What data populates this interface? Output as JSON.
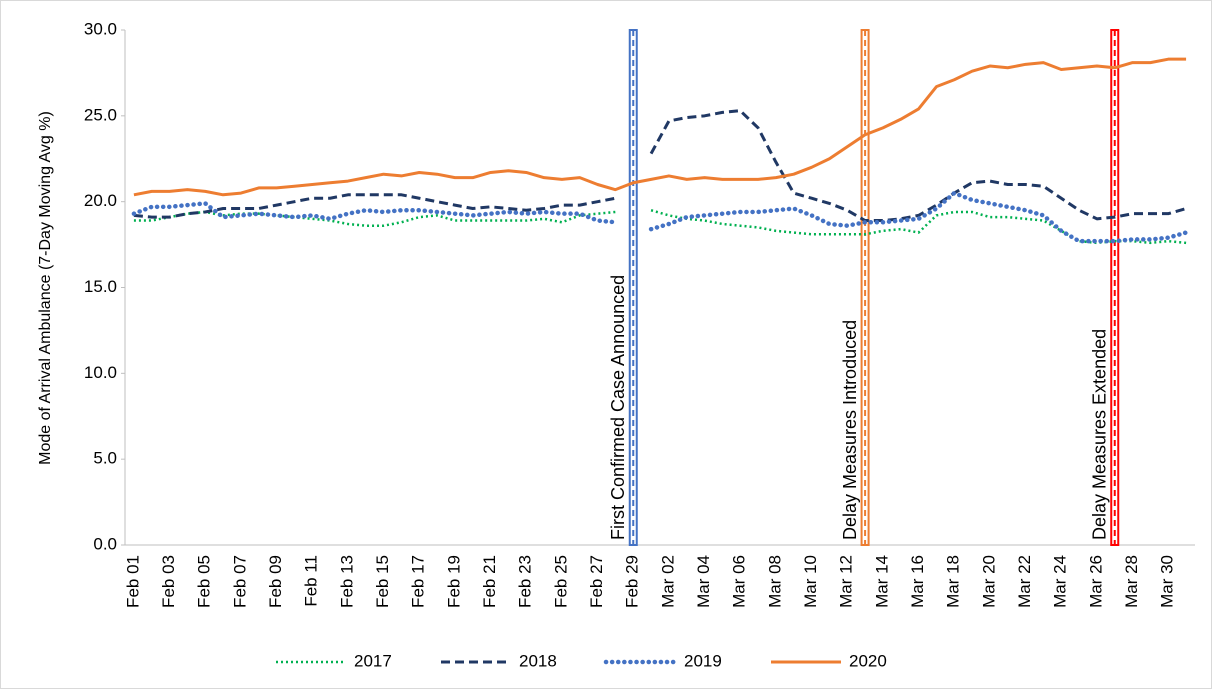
{
  "chart_data": {
    "type": "line",
    "y_label": "Mode of Arrival Ambulance (7-Day Moving Avg %)",
    "categories": [
      "Feb 01",
      null,
      "Feb 03",
      null,
      "Feb 05",
      null,
      "Feb 07",
      null,
      "Feb 09",
      null,
      "Feb 11",
      null,
      "Feb 13",
      null,
      "Feb 15",
      null,
      "Feb 17",
      null,
      "Feb 19",
      null,
      "Feb 21",
      null,
      "Feb 23",
      null,
      "Feb 25",
      null,
      "Feb 27",
      null,
      "Feb 29",
      null,
      "Mar 02",
      null,
      "Mar 04",
      null,
      "Mar 06",
      null,
      "Mar 08",
      null,
      "Mar 10",
      null,
      "Mar 12",
      null,
      "Mar 14",
      null,
      "Mar 16",
      null,
      "Mar 18",
      null,
      "Mar 20",
      null,
      "Mar 22",
      null,
      "Mar 24",
      null,
      "Mar 26",
      null,
      "Mar 28",
      null,
      "Mar 30",
      null
    ],
    "ylim": [
      0,
      30
    ],
    "yticks": [
      {
        "value": 0,
        "label": "0.0"
      },
      {
        "value": 5,
        "label": "5.0"
      },
      {
        "value": 10,
        "label": "10.0"
      },
      {
        "value": 15,
        "label": "15.0"
      },
      {
        "value": 20,
        "label": "20.0"
      },
      {
        "value": 25,
        "label": "25.0"
      },
      {
        "value": 30,
        "label": "30.0"
      }
    ],
    "grid": false,
    "legend": "bottom",
    "series": [
      {
        "name": "2017",
        "color": "#00b050",
        "line_style": "dotted",
        "values": [
          18.9,
          18.9,
          19.1,
          19.3,
          19.4,
          19.2,
          19.3,
          19.3,
          19.2,
          19.1,
          19.0,
          18.9,
          18.7,
          18.6,
          18.6,
          18.8,
          19.1,
          19.2,
          18.9,
          18.9,
          18.9,
          18.9,
          18.9,
          19.0,
          18.8,
          19.2,
          19.3,
          19.4,
          null,
          19.5,
          19.2,
          19.0,
          18.9,
          18.7,
          18.6,
          18.5,
          18.3,
          18.2,
          18.1,
          18.1,
          18.1,
          18.1,
          18.3,
          18.4,
          18.2,
          19.2,
          19.4,
          19.4,
          19.1,
          19.1,
          19.0,
          18.9,
          18.3,
          17.7,
          17.6,
          17.7,
          17.7,
          17.6,
          17.7,
          17.6
        ]
      },
      {
        "name": "2018",
        "color": "#203864",
        "line_style": "dashed",
        "values": [
          19.2,
          19.1,
          19.1,
          19.3,
          19.4,
          19.6,
          19.6,
          19.6,
          19.8,
          20.0,
          20.2,
          20.2,
          20.4,
          20.4,
          20.4,
          20.4,
          20.2,
          20.0,
          19.8,
          19.6,
          19.7,
          19.6,
          19.5,
          19.6,
          19.8,
          19.8,
          20.0,
          20.2,
          null,
          22.8,
          24.7,
          24.9,
          25.0,
          25.2,
          25.3,
          24.3,
          22.3,
          20.5,
          20.2,
          19.9,
          19.5,
          18.9,
          18.9,
          19.0,
          19.2,
          19.8,
          20.5,
          21.1,
          21.2,
          21.0,
          21.0,
          20.9,
          20.2,
          19.5,
          19.0,
          19.1,
          19.3,
          19.3,
          19.3,
          19.6
        ]
      },
      {
        "name": "2019",
        "color": "#4472c4",
        "line_style": "round-dotted",
        "values": [
          19.3,
          19.7,
          19.7,
          19.8,
          19.9,
          19.1,
          19.2,
          19.3,
          19.2,
          19.1,
          19.2,
          19.0,
          19.3,
          19.5,
          19.4,
          19.5,
          19.5,
          19.4,
          19.3,
          19.2,
          19.3,
          19.4,
          19.3,
          19.4,
          19.3,
          19.3,
          18.9,
          18.8,
          null,
          18.4,
          18.7,
          19.1,
          19.2,
          19.3,
          19.4,
          19.4,
          19.5,
          19.6,
          19.2,
          18.7,
          18.6,
          18.8,
          18.8,
          18.9,
          19.0,
          19.6,
          20.5,
          20.1,
          19.9,
          19.7,
          19.5,
          19.2,
          18.3,
          17.7,
          17.7,
          17.7,
          17.8,
          17.8,
          17.9,
          18.2
        ]
      },
      {
        "name": "2020",
        "color": "#ed7d31",
        "line_style": "solid",
        "values": [
          20.4,
          20.6,
          20.6,
          20.7,
          20.6,
          20.4,
          20.5,
          20.8,
          20.8,
          20.9,
          21.0,
          21.1,
          21.2,
          21.4,
          21.6,
          21.5,
          21.7,
          21.6,
          21.4,
          21.4,
          21.7,
          21.8,
          21.7,
          21.4,
          21.3,
          21.4,
          21.0,
          20.7,
          21.1,
          21.3,
          21.5,
          21.3,
          21.4,
          21.3,
          21.3,
          21.3,
          21.4,
          21.6,
          22.0,
          22.5,
          23.2,
          23.9,
          24.3,
          24.8,
          25.4,
          26.7,
          27.1,
          27.6,
          27.9,
          27.8,
          28.0,
          28.1,
          27.7,
          27.8,
          27.9,
          27.8,
          28.1,
          28.1,
          28.3,
          28.3
        ]
      }
    ],
    "annotations": [
      {
        "text": "First Confirmed Case Announced",
        "at": 28,
        "color": "#4472c4"
      },
      {
        "text": "Delay Measures Introduced",
        "at": 41,
        "color": "#ed7d31"
      },
      {
        "text": "Delay Measures Extended",
        "at": 55,
        "color": "#ff0000"
      }
    ]
  }
}
